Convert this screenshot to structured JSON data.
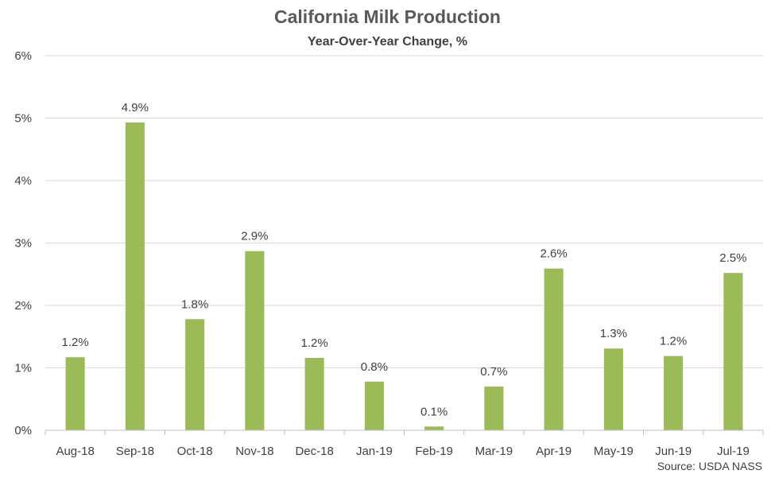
{
  "chart_data": {
    "type": "bar",
    "title": "California Milk Production",
    "subtitle": "Year-Over-Year Change, %",
    "source": "Source: USDA NASS",
    "categories": [
      "Aug-18",
      "Sep-18",
      "Oct-18",
      "Nov-18",
      "Dec-18",
      "Jan-19",
      "Feb-19",
      "Mar-19",
      "Apr-19",
      "May-19",
      "Jun-19",
      "Jul-19"
    ],
    "values": [
      1.17,
      4.93,
      1.78,
      2.87,
      1.16,
      0.78,
      0.06,
      0.7,
      2.59,
      1.31,
      1.19,
      2.52
    ],
    "data_labels": [
      "1.2%",
      "4.9%",
      "1.8%",
      "2.9%",
      "1.2%",
      "0.8%",
      "0.1%",
      "0.7%",
      "2.6%",
      "1.3%",
      "1.2%",
      "2.5%"
    ],
    "ylim": [
      0,
      6
    ],
    "yticks": [
      0,
      1,
      2,
      3,
      4,
      5,
      6
    ],
    "ytick_labels": [
      "0%",
      "1%",
      "2%",
      "3%",
      "4%",
      "5%",
      "6%"
    ],
    "grid": true,
    "xlabel": "",
    "ylabel": "",
    "colors": {
      "bar": "#9bbb59",
      "grid": "#d9d9d9",
      "axis": "#bfbfbf",
      "text": "#404040"
    }
  }
}
